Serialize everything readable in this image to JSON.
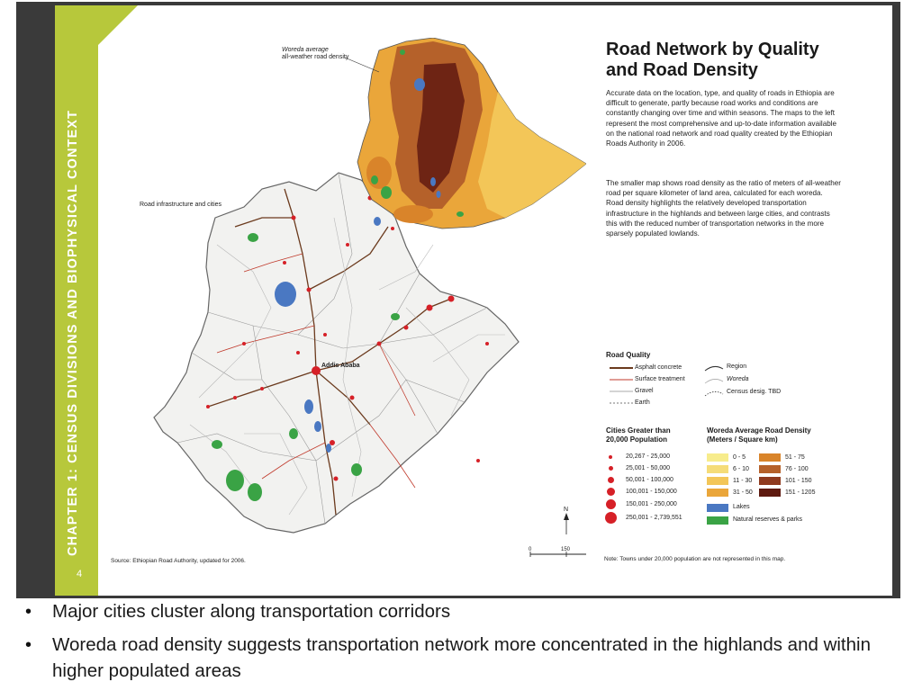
{
  "slide": {
    "chapter": "CHAPTER 1: CENSUS DIVISIONS AND BIOPHYSICAL CONTEXT",
    "page_number": "4",
    "title_line1": "Road Network by Quality",
    "title_line2": "and Road Density",
    "paragraph1": "Accurate data on the location, type, and quality of roads in Ethiopia are difficult to generate, partly because road works and conditions are constantly changing over time and within seasons. The maps to the left represent the most comprehensive and up-to-date information available on the national road network and road quality created by the Ethiopian Roads Authority in 2006.",
    "paragraph2": "The smaller map shows road density as the ratio of meters of all-weather road per square kilometer of land area, calculated for each woreda. Road density highlights the relatively developed transportation infrastructure in the highlands and between large cities, and contrasts this with the reduced number of transportation networks in the more sparsely populated lowlands.",
    "inset_label_line1": "Woreda average",
    "inset_label_line2": "all-weather road density",
    "main_map_label": "Road infrastructure and cities",
    "capital_label": "Addis Ababa",
    "source": "Source: Ethiopian Road Authority, updated for 2006.",
    "note": "Note: Towns under 20,000 population are not represented in this map.",
    "scale": {
      "ticks": [
        "0",
        "150",
        "300"
      ],
      "unit": "Km",
      "north": "N"
    }
  },
  "legend": {
    "road_quality": {
      "title": "Road Quality",
      "items": [
        "Asphalt concrete",
        "Surface treatment",
        "Gravel",
        "Earth"
      ],
      "boundaries": [
        "Region",
        "Woreda",
        "Census desig. TBD"
      ]
    },
    "cities": {
      "title_line1": "Cities Greater than",
      "title_line2": "20,000 Population",
      "items": [
        "20,267 - 25,000",
        "25,001 - 50,000",
        "50,001 - 100,000",
        "100,001 - 150,000",
        "150,001 - 250,000",
        "250,001 - 2,739,551"
      ]
    },
    "density": {
      "title_line1": "Woreda Average Road Density",
      "title_line2": "(Meters / Square km)",
      "classes": [
        {
          "label": "0 - 5",
          "color": "#f7ec8c"
        },
        {
          "label": "6 - 10",
          "color": "#f5dc78"
        },
        {
          "label": "11 - 30",
          "color": "#f3c658"
        },
        {
          "label": "31 - 50",
          "color": "#eaa63a"
        },
        {
          "label": "51 - 75",
          "color": "#d9842a"
        },
        {
          "label": "76 - 100",
          "color": "#b5612a"
        },
        {
          "label": "101 - 150",
          "color": "#8f3a1e"
        },
        {
          "label": "151 - 1205",
          "color": "#5e1a10"
        }
      ],
      "lakes": "Lakes",
      "parks": "Natural reserves & parks",
      "lakes_color": "#4a78c2",
      "parks_color": "#3aa345"
    }
  },
  "bullets": [
    "Major cities cluster along transportation corridors",
    "Woreda road density suggests transportation network more concentrated in the highlands and within higher populated areas"
  ]
}
